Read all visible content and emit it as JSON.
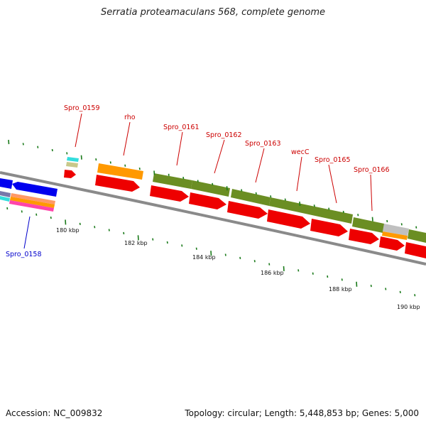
{
  "title": "Serratia proteamaculans 568, complete genome",
  "footer": {
    "accession": "Accession: NC_009832",
    "summary": "Topology: circular; Length: 5,448,853 bp; Genes: 5,000"
  },
  "colors": {
    "label_red": "#cc0000",
    "label_blue": "#0000cc",
    "backbone": "#8a8a8a",
    "tick": "#1a7a1a",
    "cds_red": "#ee0000",
    "cog_green": "#6b8e23",
    "cog_orange": "#ff9900",
    "cog_blue": "#0000ee",
    "cog_gray": "#c0c0c0",
    "cog_cyan": "#33dddd",
    "cog_pink": "#ff44aa"
  },
  "ruler": [
    {
      "label": "180 kbp"
    },
    {
      "label": "182 kbp"
    },
    {
      "label": "184 kbp"
    },
    {
      "label": "186 kbp"
    },
    {
      "label": "188 kbp"
    },
    {
      "label": "190 kbp"
    }
  ],
  "genes": [
    {
      "name": "Spro_0158",
      "color": "blue"
    },
    {
      "name": "Spro_0159",
      "color": "red"
    },
    {
      "name": "rho",
      "color": "red"
    },
    {
      "name": "Spro_0161",
      "color": "red"
    },
    {
      "name": "Spro_0162",
      "color": "red"
    },
    {
      "name": "Spro_0163",
      "color": "red"
    },
    {
      "name": "wecC",
      "color": "red"
    },
    {
      "name": "Spro_0165",
      "color": "red"
    },
    {
      "name": "Spro_0166",
      "color": "red"
    }
  ]
}
